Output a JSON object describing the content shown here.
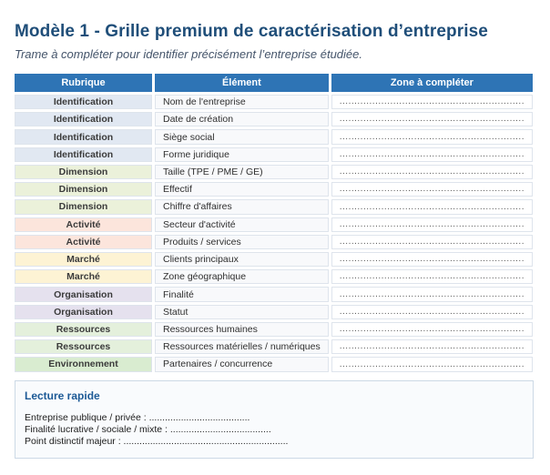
{
  "page": {
    "title": "Modèle 1 - Grille premium de caractérisation d’entreprise",
    "subtitle": "Trame à compléter pour identifier précisément l’entreprise étudiée."
  },
  "table": {
    "headers": [
      "Rubrique",
      "Élément",
      "Zone à compléter"
    ],
    "zone_filler": "..............................................................",
    "rows": [
      {
        "rubrique": "Identification",
        "element": "Nom de l'entreprise",
        "category": "identification"
      },
      {
        "rubrique": "Identification",
        "element": "Date de création",
        "category": "identification"
      },
      {
        "rubrique": "Identification",
        "element": "Siège social",
        "category": "identification"
      },
      {
        "rubrique": "Identification",
        "element": "Forme juridique",
        "category": "identification"
      },
      {
        "rubrique": "Dimension",
        "element": "Taille (TPE / PME / GE)",
        "category": "dimension"
      },
      {
        "rubrique": "Dimension",
        "element": "Effectif",
        "category": "dimension"
      },
      {
        "rubrique": "Dimension",
        "element": "Chiffre d'affaires",
        "category": "dimension"
      },
      {
        "rubrique": "Activité",
        "element": "Secteur d'activité",
        "category": "activite"
      },
      {
        "rubrique": "Activité",
        "element": "Produits / services",
        "category": "activite"
      },
      {
        "rubrique": "Marché",
        "element": "Clients principaux",
        "category": "marche"
      },
      {
        "rubrique": "Marché",
        "element": "Zone géographique",
        "category": "marche"
      },
      {
        "rubrique": "Organisation",
        "element": "Finalité",
        "category": "organisation"
      },
      {
        "rubrique": "Organisation",
        "element": "Statut",
        "category": "organisation"
      },
      {
        "rubrique": "Ressources",
        "element": "Ressources humaines",
        "category": "ressources"
      },
      {
        "rubrique": "Ressources",
        "element": "Ressources matérielles / numériques",
        "category": "ressources"
      },
      {
        "rubrique": "Environnement",
        "element": "Partenaires / concurrence",
        "category": "environnement"
      }
    ]
  },
  "category_colors": {
    "identification": "#e1e8f2",
    "dimension": "#ebf1da",
    "activite": "#fce5dc",
    "marche": "#fdf3d4",
    "organisation": "#e5e1ee",
    "ressources": "#e4f0dc",
    "environnement": "#d9ecd0"
  },
  "theme": {
    "header_bg": "#2e74b5",
    "title_color": "#1f4e79",
    "subtitle_color": "#44546a",
    "border_color": "#dee4ec",
    "lecture_heading_color": "#1d5a96",
    "lecture_border": "#ccd9e6",
    "lecture_bg": "#f9fbfd"
  },
  "lecture": {
    "heading": "Lecture rapide",
    "lines": [
      "Entreprise publique / privée : ......................................",
      "Finalité lucrative / sociale / mixte : ......................................",
      "Point distinctif majeur : .............................................................."
    ]
  }
}
